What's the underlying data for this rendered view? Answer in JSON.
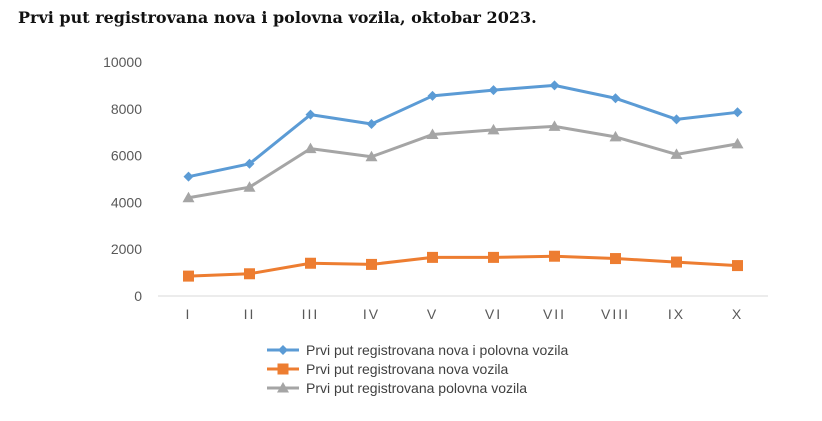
{
  "chart_data": {
    "type": "line",
    "title": "Prvi put registrovana nova i polovna vozila, oktobar 2023.",
    "categories": [
      "I",
      "II",
      "III",
      "IV",
      "V",
      "VI",
      "VII",
      "VIII",
      "IX",
      "X"
    ],
    "ylim": [
      0,
      10000
    ],
    "yticks": [
      "0",
      "2000",
      "4000",
      "6000",
      "8000",
      "10000"
    ],
    "grid": false,
    "legend_position": "bottom",
    "series": [
      {
        "name": "Prvi put registrovana nova i polovna vozila",
        "color": "#5B9BD5",
        "marker": "diamond",
        "values": [
          5100,
          5650,
          7750,
          7350,
          8550,
          8800,
          9000,
          8450,
          7550,
          7850
        ]
      },
      {
        "name": "Prvi put registrovana nova vozila",
        "color": "#ED7D31",
        "marker": "square",
        "values": [
          850,
          950,
          1400,
          1350,
          1650,
          1650,
          1700,
          1600,
          1450,
          1300
        ]
      },
      {
        "name": "Prvi put registrovana polovna vozila",
        "color": "#A5A5A5",
        "marker": "triangle",
        "values": [
          4200,
          4650,
          6300,
          5950,
          6900,
          7100,
          7250,
          6800,
          6050,
          6500
        ]
      }
    ]
  }
}
